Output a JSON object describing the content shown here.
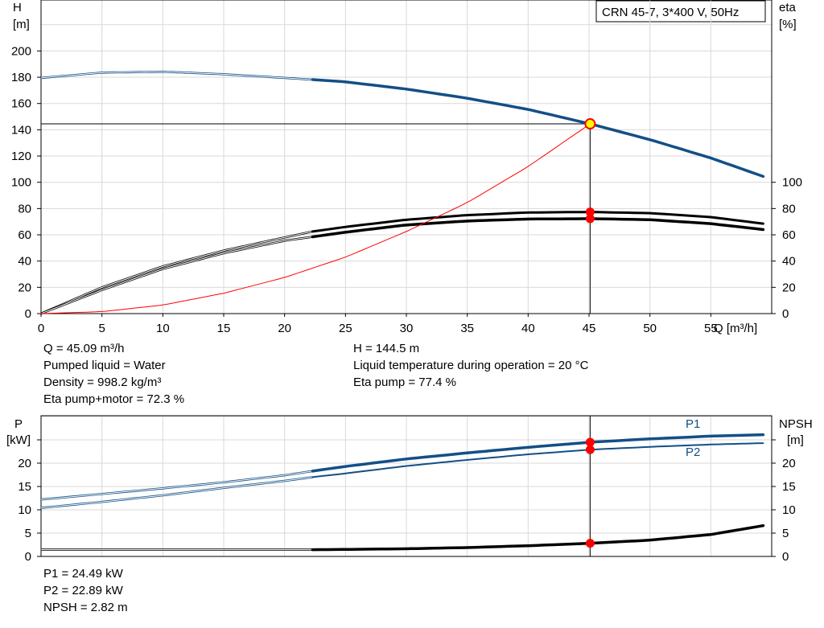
{
  "title_box": "CRN 45-7, 3*400 V, 50Hz",
  "top_chart": {
    "left_axis_label": [
      "H",
      "[m]"
    ],
    "right_axis_label": [
      "eta",
      "[%]"
    ],
    "x_axis_label": "Q [m³/h]",
    "x_ticks": [
      "0",
      "5",
      "10",
      "15",
      "20",
      "25",
      "30",
      "35",
      "40",
      "45",
      "50",
      "55"
    ],
    "left_ticks": [
      "0",
      "20",
      "40",
      "60",
      "80",
      "100",
      "120",
      "140",
      "160",
      "180",
      "200"
    ],
    "right_ticks": [
      "0",
      "20",
      "40",
      "60",
      "80",
      "100"
    ]
  },
  "info_left": [
    "Q = 45.09 m³/h",
    "Pumped liquid = Water",
    "Density = 998.2 kg/m³",
    "Eta pump+motor = 72.3 %"
  ],
  "info_right": [
    "H = 144.5 m",
    "Liquid temperature during operation = 20 °C",
    "Eta pump = 77.4 %"
  ],
  "bottom_chart": {
    "left_axis_label": [
      "P",
      "[kW]"
    ],
    "right_axis_label": [
      "NPSH",
      "[m]"
    ],
    "left_ticks": [
      "0",
      "5",
      "10",
      "15",
      "20"
    ],
    "right_ticks": [
      "0",
      "5",
      "10",
      "15",
      "20"
    ],
    "series_labels": [
      "P1",
      "P2"
    ]
  },
  "info_bottom": [
    "P1 = 24.49 kW",
    "P2 = 22.89 kW",
    "NPSH = 2.82 m"
  ],
  "colors": {
    "head_curve": "#134F86",
    "eta_curve": "#000000",
    "system_curve": "#FF0000",
    "power_curve": "#134F86",
    "npsh_curve": "#000000",
    "grid": "#d9d9d9",
    "duty_point_fill": "#FFFF00",
    "duty_point_marker": "#FF0000"
  },
  "chart_data": [
    {
      "type": "line",
      "xlim": [
        0,
        60
      ],
      "ylim": [
        0,
        200
      ],
      "x_tick_step": 5,
      "y_tick_step": 20,
      "grid": true,
      "duty_point": {
        "x": 45.09,
        "y": 144.5
      },
      "series": [
        {
          "key": "head",
          "axis": "left",
          "thin_range": [
            0,
            22.3
          ],
          "thick_range": [
            22.3,
            59.3
          ],
          "x": [
            0,
            5,
            10,
            15,
            20,
            22.3,
            25,
            30,
            35,
            40,
            45.09,
            50,
            55,
            59.3
          ],
          "y": [
            179.5,
            183.5,
            184.2,
            182.3,
            179.5,
            178.2,
            176.5,
            171,
            164,
            155.5,
            144.5,
            132.5,
            118.5,
            104.5
          ]
        },
        {
          "key": "eta_pump",
          "axis": "right",
          "thin_range": [
            0,
            22.3
          ],
          "thick_range": [
            22.3,
            59.3
          ],
          "x": [
            0,
            5,
            10,
            15,
            20,
            22.3,
            25,
            30,
            35,
            40,
            45.09,
            50,
            55,
            59.3
          ],
          "y": [
            0,
            20,
            36,
            48,
            58,
            62.5,
            66,
            71.5,
            75,
            77,
            77.4,
            76.5,
            73.5,
            68.5
          ]
        },
        {
          "key": "eta_pump_motor",
          "axis": "right",
          "thin_range": [
            0,
            22.3
          ],
          "thick_range": [
            22.3,
            59.3
          ],
          "x": [
            0,
            5,
            10,
            15,
            20,
            22.3,
            25,
            30,
            35,
            40,
            45.09,
            50,
            55,
            59.3
          ],
          "y": [
            0,
            18,
            34,
            46,
            55.5,
            58.5,
            62,
            67.5,
            70.5,
            72,
            72.3,
            71.5,
            68.5,
            64
          ]
        },
        {
          "key": "system_curve",
          "axis": "left",
          "thin_range": [
            0,
            45.09
          ],
          "thick_range": null,
          "x": [
            0,
            5,
            10,
            15,
            20,
            25,
            30,
            35,
            40,
            45.09
          ],
          "y": [
            0,
            1.5,
            6.5,
            15.5,
            27.5,
            43,
            62.5,
            84.5,
            112,
            144.5
          ]
        }
      ],
      "markers": [
        {
          "key": "eta_pump",
          "x": 45.09,
          "y": 77.4
        },
        {
          "key": "eta_pump_motor",
          "x": 45.09,
          "y": 72.3
        }
      ]
    },
    {
      "type": "line",
      "xlim": [
        0,
        60
      ],
      "ylim": [
        0,
        25
      ],
      "y_tick_step": 5,
      "grid": true,
      "series": [
        {
          "key": "P1",
          "name": "P1",
          "axis": "left",
          "thin_range": [
            0,
            22.3
          ],
          "thick_range": [
            22.3,
            59.3
          ],
          "x": [
            0,
            5,
            10,
            15,
            20,
            22.3,
            25,
            30,
            35,
            40,
            45.09,
            50,
            55,
            59.3
          ],
          "y": [
            12.2,
            13.4,
            14.6,
            15.9,
            17.4,
            18.3,
            19.3,
            20.9,
            22.2,
            23.4,
            24.49,
            25.2,
            25.8,
            26.1
          ]
        },
        {
          "key": "P2",
          "name": "P2",
          "axis": "left",
          "thin_range": [
            0,
            22.3
          ],
          "thick_range": [
            22.3,
            59.3
          ],
          "x": [
            0,
            5,
            10,
            15,
            20,
            22.3,
            25,
            30,
            35,
            40,
            45.09,
            50,
            55,
            59.3
          ],
          "y": [
            10.4,
            11.7,
            13.1,
            14.7,
            16.2,
            17,
            17.8,
            19.4,
            20.7,
            21.9,
            22.89,
            23.5,
            24,
            24.3
          ]
        },
        {
          "key": "NPSH",
          "axis": "right",
          "thin_range": [
            0,
            22.3
          ],
          "thick_range": [
            22.3,
            59.3
          ],
          "x": [
            0,
            22.3,
            25,
            30,
            35,
            40,
            45.09,
            50,
            55,
            59.3
          ],
          "y": [
            1.45,
            1.45,
            1.5,
            1.65,
            1.9,
            2.3,
            2.82,
            3.5,
            4.7,
            6.6
          ]
        }
      ],
      "markers": [
        {
          "key": "P1",
          "x": 45.09,
          "y": 24.49
        },
        {
          "key": "P2",
          "x": 45.09,
          "y": 22.89
        },
        {
          "key": "NPSH",
          "x": 45.09,
          "y": 2.82
        }
      ]
    }
  ]
}
